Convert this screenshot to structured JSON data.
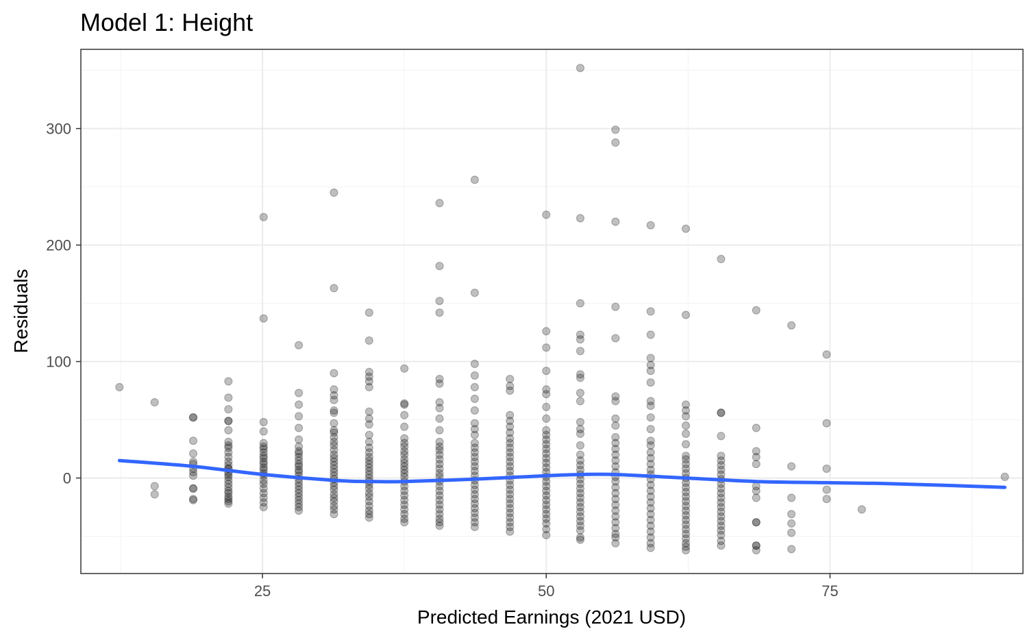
{
  "chart_data": {
    "type": "scatter",
    "title": "Model 1: Height",
    "xlabel": "Predicted Earnings (2021 USD)",
    "ylabel": "Residuals",
    "xlim": [
      9,
      92
    ],
    "ylim": [
      -82,
      368
    ],
    "x_ticks": [
      25,
      50,
      75
    ],
    "y_ticks": [
      0,
      100,
      200,
      300
    ],
    "grid": true,
    "theme": "bw",
    "point_color": "#000000",
    "point_alpha": 0.25,
    "line_color": "#3366ff",
    "columns": [
      {
        "x": 12.4,
        "y": [
          78
        ]
      },
      {
        "x": 15.5,
        "y": [
          65,
          -7,
          -14
        ]
      },
      {
        "x": 18.9,
        "y": [
          52,
          52,
          32,
          21,
          14,
          12,
          8,
          5,
          2,
          -9,
          -9,
          -18,
          -19
        ]
      },
      {
        "x": 22.0,
        "y": [
          83,
          69,
          59,
          49,
          49,
          41,
          31,
          28,
          26,
          22,
          18,
          14,
          11,
          8,
          8,
          5,
          3,
          1,
          -2,
          -5,
          -8,
          -11,
          -13,
          -16,
          -18,
          -20,
          -22
        ]
      },
      {
        "x": 25.1,
        "y": [
          224,
          137,
          48,
          40,
          30,
          27,
          25,
          22,
          19,
          17,
          14,
          12,
          9,
          7,
          4,
          2,
          -2,
          -5,
          -9,
          -13,
          -17,
          -21,
          -25
        ]
      },
      {
        "x": 28.2,
        "y": [
          114,
          73,
          63,
          53,
          43,
          33,
          27,
          23,
          21,
          18,
          15,
          12,
          10,
          7,
          5,
          2,
          -1,
          -4,
          -7,
          -10,
          -13,
          -16,
          -19,
          -22,
          -25,
          -28
        ]
      },
      {
        "x": 31.3,
        "y": [
          245,
          163,
          90,
          76,
          71,
          67,
          58,
          56,
          47,
          41,
          39,
          35,
          31,
          28,
          24,
          20,
          17,
          14,
          11,
          8,
          5,
          2,
          -1,
          -4,
          -7,
          -10,
          -14,
          -17,
          -20,
          -24,
          -27,
          -31
        ]
      },
      {
        "x": 34.4,
        "y": [
          142,
          118,
          91,
          87,
          83,
          78,
          57,
          51,
          46,
          37,
          31,
          26,
          22,
          18,
          15,
          12,
          9,
          6,
          3,
          0,
          -3,
          -6,
          -9,
          -13,
          -16,
          -20,
          -24,
          -28,
          -31,
          -34
        ]
      },
      {
        "x": 37.5,
        "y": [
          94,
          64,
          63,
          54,
          44,
          34,
          30,
          27,
          23,
          20,
          16,
          13,
          10,
          7,
          4,
          1,
          -3,
          -7,
          -11,
          -15,
          -19,
          -23,
          -27,
          -31,
          -35,
          -38
        ]
      },
      {
        "x": 40.6,
        "y": [
          236,
          182,
          152,
          142,
          85,
          81,
          65,
          60,
          51,
          41,
          31,
          27,
          24,
          20,
          16,
          12,
          8,
          4,
          1,
          -3,
          -7,
          -11,
          -15,
          -19,
          -23,
          -27,
          -31,
          -35,
          -38,
          -41
        ]
      },
      {
        "x": 43.7,
        "y": [
          256,
          159,
          98,
          88,
          78,
          68,
          58,
          47,
          42,
          37,
          30,
          26,
          22,
          18,
          14,
          10,
          6,
          2,
          -2,
          -6,
          -10,
          -14,
          -18,
          -22,
          -26,
          -30,
          -34,
          -38,
          -42
        ]
      },
      {
        "x": 46.8,
        "y": [
          85,
          79,
          75,
          54,
          49,
          44,
          39,
          34,
          30,
          26,
          22,
          18,
          14,
          10,
          6,
          2,
          -2,
          -6,
          -10,
          -14,
          -18,
          -22,
          -26,
          -30,
          -34,
          -38,
          -42,
          -46
        ]
      },
      {
        "x": 50.0,
        "y": [
          226,
          126,
          112,
          92,
          76,
          72,
          61,
          51,
          41,
          37,
          33,
          29,
          25,
          21,
          17,
          13,
          9,
          5,
          1,
          -3,
          -7,
          -11,
          -15,
          -19,
          -23,
          -27,
          -31,
          -35,
          -39,
          -44,
          -49
        ]
      },
      {
        "x": 53.0,
        "y": [
          352,
          223,
          150,
          123,
          119,
          109,
          89,
          86,
          73,
          66,
          48,
          42,
          38,
          28,
          20,
          15,
          11,
          7,
          3,
          -1,
          -5,
          -9,
          -13,
          -17,
          -21,
          -25,
          -29,
          -33,
          -37,
          -41,
          -45,
          -51,
          -53
        ]
      },
      {
        "x": 56.1,
        "y": [
          299,
          288,
          220,
          147,
          120,
          70,
          66,
          51,
          45,
          35,
          30,
          25,
          20,
          15,
          10,
          5,
          1,
          -3,
          -8,
          -13,
          -18,
          -23,
          -28,
          -33,
          -38,
          -43,
          -48,
          -51,
          -56
        ]
      },
      {
        "x": 59.2,
        "y": [
          217,
          143,
          123,
          103,
          97,
          92,
          82,
          66,
          62,
          52,
          42,
          32,
          28,
          22,
          17,
          12,
          7,
          3,
          -1,
          -6,
          -11,
          -16,
          -21,
          -26,
          -31,
          -36,
          -41,
          -46,
          -51,
          -56,
          -60
        ]
      },
      {
        "x": 62.3,
        "y": [
          214,
          140,
          63,
          58,
          53,
          45,
          38,
          29,
          19,
          16,
          12,
          8,
          4,
          0,
          -4,
          -8,
          -12,
          -16,
          -20,
          -24,
          -28,
          -32,
          -36,
          -40,
          -44,
          -48,
          -52,
          -56,
          -59,
          -62
        ]
      },
      {
        "x": 65.4,
        "y": [
          188,
          56,
          56,
          36,
          19,
          15,
          11,
          7,
          3,
          -1,
          -5,
          -9,
          -13,
          -17,
          -21,
          -25,
          -29,
          -33,
          -37,
          -41,
          -45,
          -49,
          -54,
          -58
        ]
      },
      {
        "x": 68.5,
        "y": [
          144,
          43,
          23,
          18,
          12,
          -7,
          -11,
          -17,
          -38,
          -38,
          -58,
          -58,
          -62
        ]
      },
      {
        "x": 71.6,
        "y": [
          131,
          10,
          -17,
          -31,
          -39,
          -47,
          -61
        ]
      },
      {
        "x": 74.7,
        "y": [
          106,
          47,
          8,
          -10,
          -18
        ]
      },
      {
        "x": 77.8,
        "y": [
          -27
        ]
      },
      {
        "x": 90.4,
        "y": [
          1
        ]
      }
    ],
    "smooth": {
      "label": "",
      "x": [
        12.4,
        18.9,
        25.1,
        31.3,
        34.4,
        37.5,
        43.7,
        50.0,
        53.0,
        56.1,
        62.3,
        68.5,
        74.7,
        80.8,
        90.4
      ],
      "y": [
        15,
        10,
        3,
        -2,
        -3,
        -3,
        -1,
        2,
        3,
        3,
        0,
        -3,
        -4,
        -5,
        -8
      ]
    }
  }
}
